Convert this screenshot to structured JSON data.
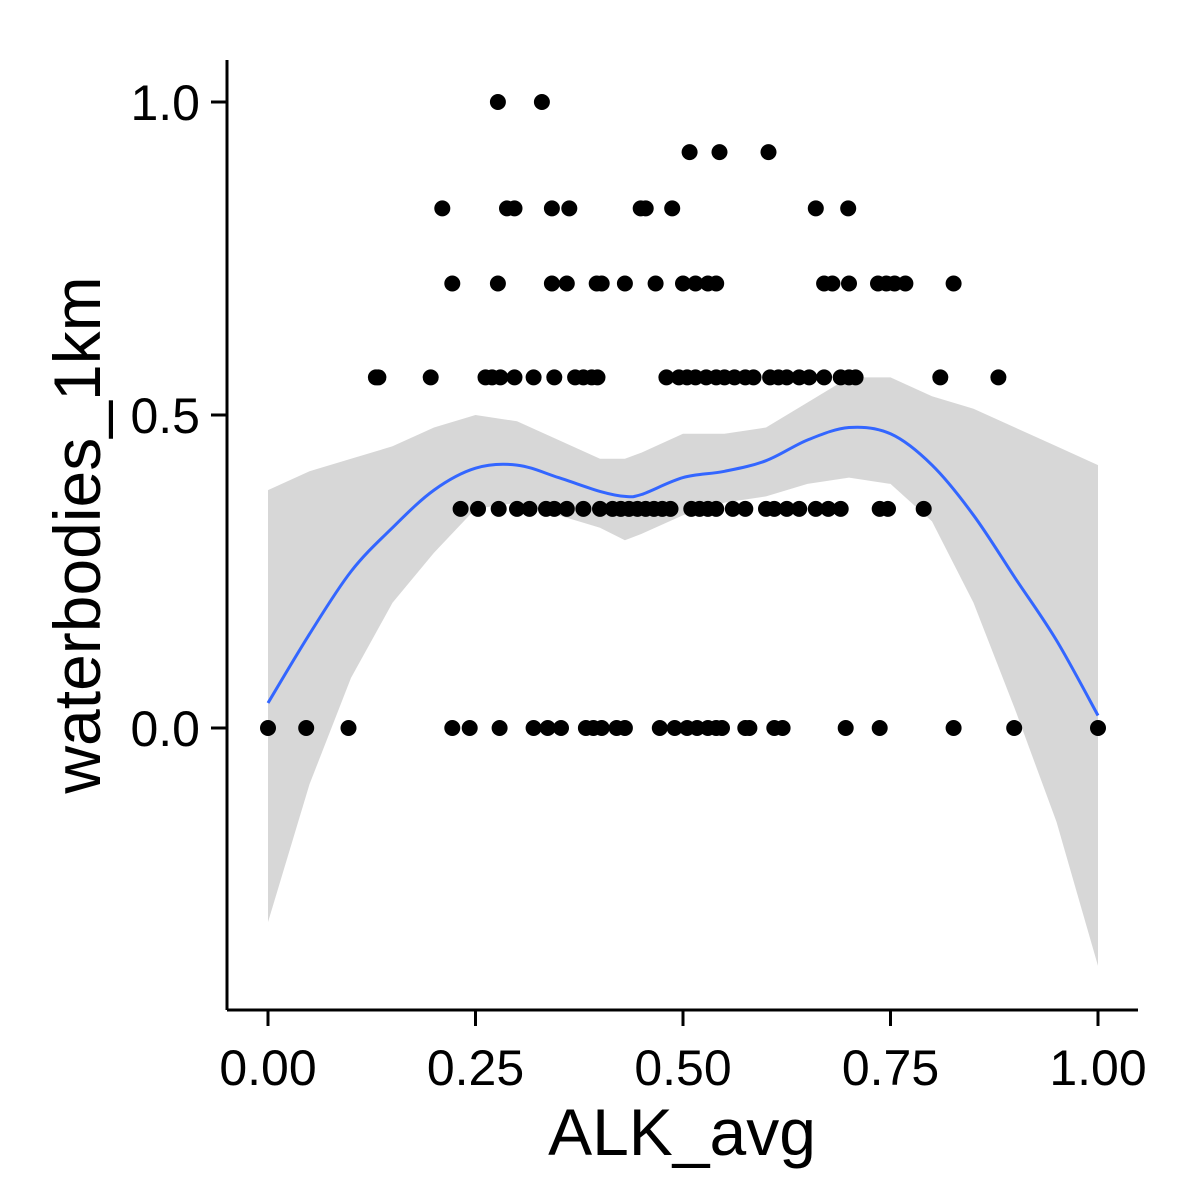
{
  "chart_data": {
    "type": "scatter",
    "title": "",
    "xlabel": "ALK_avg",
    "ylabel": "waterbodies_1km",
    "xlim": [
      -0.05,
      1.05
    ],
    "ylim": [
      -0.45,
      1.07
    ],
    "x_ticks": [
      0,
      0.25,
      0.5,
      0.75,
      1
    ],
    "x_tick_labels": [
      "0.00",
      "0.25",
      "0.50",
      "0.75",
      "1.00"
    ],
    "y_ticks": [
      0,
      0.5,
      1
    ],
    "y_tick_labels": [
      "0.0",
      "0.5",
      "1.0"
    ],
    "grid": false,
    "legend": "none",
    "colors": {
      "points": "#000000",
      "smooth": "#3366ff",
      "band": "#d3d3d3",
      "axis": "#000000"
    },
    "series": [
      {
        "type": "scatter",
        "points": [
          [
            0.277,
            1.0
          ],
          [
            0.33,
            1.0
          ],
          [
            0.508,
            0.92
          ],
          [
            0.544,
            0.92
          ],
          [
            0.603,
            0.92
          ],
          [
            0.21,
            0.83
          ],
          [
            0.288,
            0.83
          ],
          [
            0.297,
            0.83
          ],
          [
            0.342,
            0.83
          ],
          [
            0.363,
            0.83
          ],
          [
            0.449,
            0.83
          ],
          [
            0.455,
            0.83
          ],
          [
            0.487,
            0.83
          ],
          [
            0.66,
            0.83
          ],
          [
            0.699,
            0.83
          ],
          [
            0.222,
            0.71
          ],
          [
            0.277,
            0.71
          ],
          [
            0.342,
            0.71
          ],
          [
            0.36,
            0.71
          ],
          [
            0.396,
            0.71
          ],
          [
            0.402,
            0.71
          ],
          [
            0.43,
            0.71
          ],
          [
            0.467,
            0.71
          ],
          [
            0.5,
            0.71
          ],
          [
            0.515,
            0.71
          ],
          [
            0.53,
            0.71
          ],
          [
            0.54,
            0.71
          ],
          [
            0.67,
            0.71
          ],
          [
            0.68,
            0.71
          ],
          [
            0.7,
            0.71
          ],
          [
            0.735,
            0.71
          ],
          [
            0.745,
            0.71
          ],
          [
            0.755,
            0.71
          ],
          [
            0.768,
            0.71
          ],
          [
            0.826,
            0.71
          ],
          [
            0.13,
            0.56
          ],
          [
            0.133,
            0.56
          ],
          [
            0.196,
            0.56
          ],
          [
            0.262,
            0.56
          ],
          [
            0.27,
            0.56
          ],
          [
            0.28,
            0.56
          ],
          [
            0.297,
            0.56
          ],
          [
            0.32,
            0.56
          ],
          [
            0.345,
            0.56
          ],
          [
            0.37,
            0.56
          ],
          [
            0.38,
            0.56
          ],
          [
            0.39,
            0.56
          ],
          [
            0.397,
            0.56
          ],
          [
            0.48,
            0.56
          ],
          [
            0.495,
            0.56
          ],
          [
            0.505,
            0.56
          ],
          [
            0.515,
            0.56
          ],
          [
            0.528,
            0.56
          ],
          [
            0.54,
            0.56
          ],
          [
            0.55,
            0.56
          ],
          [
            0.562,
            0.56
          ],
          [
            0.575,
            0.56
          ],
          [
            0.585,
            0.56
          ],
          [
            0.605,
            0.56
          ],
          [
            0.615,
            0.56
          ],
          [
            0.625,
            0.56
          ],
          [
            0.64,
            0.56
          ],
          [
            0.652,
            0.56
          ],
          [
            0.67,
            0.56
          ],
          [
            0.69,
            0.56
          ],
          [
            0.7,
            0.56
          ],
          [
            0.708,
            0.56
          ],
          [
            0.81,
            0.56
          ],
          [
            0.88,
            0.56
          ],
          [
            0.232,
            0.35
          ],
          [
            0.253,
            0.35
          ],
          [
            0.278,
            0.35
          ],
          [
            0.3,
            0.35
          ],
          [
            0.315,
            0.35
          ],
          [
            0.335,
            0.35
          ],
          [
            0.345,
            0.35
          ],
          [
            0.36,
            0.35
          ],
          [
            0.38,
            0.35
          ],
          [
            0.4,
            0.35
          ],
          [
            0.415,
            0.35
          ],
          [
            0.425,
            0.35
          ],
          [
            0.435,
            0.35
          ],
          [
            0.445,
            0.35
          ],
          [
            0.455,
            0.35
          ],
          [
            0.465,
            0.35
          ],
          [
            0.475,
            0.35
          ],
          [
            0.485,
            0.35
          ],
          [
            0.51,
            0.35
          ],
          [
            0.52,
            0.35
          ],
          [
            0.53,
            0.35
          ],
          [
            0.54,
            0.35
          ],
          [
            0.56,
            0.35
          ],
          [
            0.575,
            0.35
          ],
          [
            0.6,
            0.35
          ],
          [
            0.61,
            0.35
          ],
          [
            0.625,
            0.35
          ],
          [
            0.64,
            0.35
          ],
          [
            0.66,
            0.35
          ],
          [
            0.675,
            0.35
          ],
          [
            0.69,
            0.35
          ],
          [
            0.737,
            0.35
          ],
          [
            0.747,
            0.35
          ],
          [
            0.79,
            0.35
          ],
          [
            0.0,
            0.0
          ],
          [
            0.046,
            0.0
          ],
          [
            0.097,
            0.0
          ],
          [
            0.222,
            0.0
          ],
          [
            0.243,
            0.0
          ],
          [
            0.279,
            0.0
          ],
          [
            0.32,
            0.0
          ],
          [
            0.337,
            0.0
          ],
          [
            0.353,
            0.0
          ],
          [
            0.383,
            0.0
          ],
          [
            0.392,
            0.0
          ],
          [
            0.402,
            0.0
          ],
          [
            0.42,
            0.0
          ],
          [
            0.43,
            0.0
          ],
          [
            0.472,
            0.0
          ],
          [
            0.49,
            0.0
          ],
          [
            0.505,
            0.0
          ],
          [
            0.517,
            0.0
          ],
          [
            0.53,
            0.0
          ],
          [
            0.54,
            0.0
          ],
          [
            0.547,
            0.0
          ],
          [
            0.575,
            0.0
          ],
          [
            0.58,
            0.0
          ],
          [
            0.61,
            0.0
          ],
          [
            0.62,
            0.0
          ],
          [
            0.696,
            0.0
          ],
          [
            0.737,
            0.0
          ],
          [
            0.826,
            0.0
          ],
          [
            0.899,
            0.0
          ],
          [
            1.0,
            0.0
          ]
        ]
      },
      {
        "type": "line",
        "points": [
          [
            0.0,
            0.04
          ],
          [
            0.05,
            0.15
          ],
          [
            0.1,
            0.25
          ],
          [
            0.15,
            0.32
          ],
          [
            0.2,
            0.38
          ],
          [
            0.25,
            0.415
          ],
          [
            0.3,
            0.42
          ],
          [
            0.35,
            0.4
          ],
          [
            0.4,
            0.378
          ],
          [
            0.43,
            0.37
          ],
          [
            0.45,
            0.373
          ],
          [
            0.5,
            0.4
          ],
          [
            0.55,
            0.41
          ],
          [
            0.6,
            0.427
          ],
          [
            0.65,
            0.46
          ],
          [
            0.7,
            0.48
          ],
          [
            0.75,
            0.47
          ],
          [
            0.8,
            0.42
          ],
          [
            0.85,
            0.34
          ],
          [
            0.9,
            0.24
          ],
          [
            0.95,
            0.14
          ],
          [
            1.0,
            0.02
          ]
        ]
      },
      {
        "type": "area",
        "points": [
          [
            0.0,
            -0.31,
            0.38
          ],
          [
            0.05,
            -0.09,
            0.41
          ],
          [
            0.1,
            0.08,
            0.43
          ],
          [
            0.15,
            0.2,
            0.45
          ],
          [
            0.2,
            0.28,
            0.48
          ],
          [
            0.25,
            0.35,
            0.5
          ],
          [
            0.3,
            0.36,
            0.49
          ],
          [
            0.35,
            0.34,
            0.46
          ],
          [
            0.4,
            0.32,
            0.43
          ],
          [
            0.43,
            0.3,
            0.43
          ],
          [
            0.45,
            0.31,
            0.44
          ],
          [
            0.5,
            0.34,
            0.47
          ],
          [
            0.55,
            0.36,
            0.47
          ],
          [
            0.6,
            0.37,
            0.48
          ],
          [
            0.65,
            0.39,
            0.52
          ],
          [
            0.7,
            0.4,
            0.56
          ],
          [
            0.75,
            0.39,
            0.56
          ],
          [
            0.8,
            0.33,
            0.53
          ],
          [
            0.85,
            0.2,
            0.51
          ],
          [
            0.9,
            0.03,
            0.48
          ],
          [
            0.95,
            -0.15,
            0.45
          ],
          [
            1.0,
            -0.38,
            0.42
          ]
        ]
      }
    ]
  }
}
